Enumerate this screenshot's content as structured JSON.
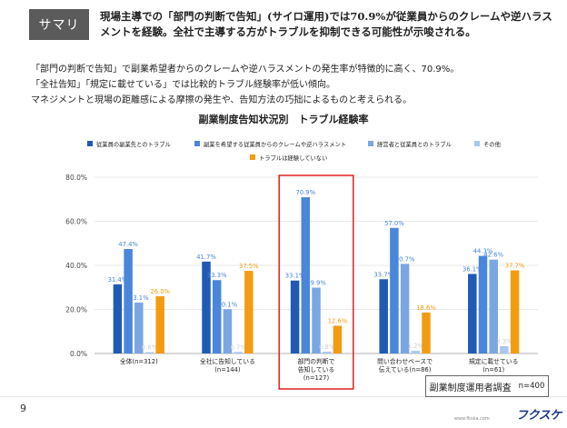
{
  "summary": {
    "tag": "サマリ",
    "text": "現場主導での「部門の判断で告知」(サイロ運用)では70.9%が従業員からのクレームや逆ハラスメントを経験。全社で主導する方がトラブルを抑制できる可能性が示唆される。"
  },
  "description": [
    "「部門の判断で告知」で副業希望者からのクレームや逆ハラスメントの発生率が特徴的に高く、70.9%。",
    "「全社告知」「規定に載せている」では比較的トラブル経験率が低い傾向。",
    "マネジメントと現場の距離感による摩擦の発生や、告知方法の巧拙によるものと考えられる。"
  ],
  "page_number": "9",
  "source": {
    "label": "副業制度運用者調査",
    "n": "n=400"
  },
  "footer": {
    "url": "www.fkska.com",
    "logo": "フクスケ"
  },
  "colors": {
    "s1": "#1f5bb5",
    "s2": "#4a86d9",
    "s3": "#7aa7e3",
    "s4": "#a9c6ee",
    "s5": "#f39c12",
    "highlight": "#e02020",
    "label_blue": "#4a86d9",
    "label_orange": "#f39c12",
    "label_gray": "#c9ccd1"
  },
  "chart_data": {
    "type": "bar",
    "title": "副業制度告知状況別　トラブル経験率",
    "categories": [
      [
        "全体(n=312)"
      ],
      [
        "全社に告知している",
        "(n=144)"
      ],
      [
        "部門の判断で",
        "告知している",
        "(n=127)"
      ],
      [
        "問い合わせベースで",
        "伝えている(n=86)"
      ],
      [
        "規定に載せている",
        "(n=61)"
      ]
    ],
    "series": [
      {
        "name": "従業員の副業先とのトラブル",
        "values": [
          31.4,
          41.7,
          33.1,
          33.7,
          36.1
        ],
        "labels": [
          "31.4%",
          "41.7%",
          "33.1%",
          "33.7%",
          "36.1%"
        ]
      },
      {
        "name": "副業を希望する従業員からのクレームや逆ハラスメント",
        "values": [
          47.4,
          33.3,
          70.9,
          57.0,
          44.3
        ],
        "labels": [
          "47.4%",
          "33.3%",
          "70.9%",
          "57.0%",
          "44.3%"
        ]
      },
      {
        "name": "経営者と従業員とのトラブル",
        "values": [
          23.1,
          20.1,
          29.9,
          40.7,
          42.6
        ],
        "labels": [
          "23.1%",
          "20.1%",
          "29.9%",
          "40.7%",
          "42.6%"
        ]
      },
      {
        "name": "その他",
        "values": [
          0.6,
          0.7,
          0.8,
          1.2,
          3.3
        ],
        "labels": [
          "0.6%",
          "0.7%",
          "0.8%",
          "1.2%",
          "3.3%"
        ]
      },
      {
        "name": "トラブルは経験していない",
        "values": [
          26.0,
          37.5,
          12.6,
          18.6,
          37.7
        ],
        "labels": [
          "26.0%",
          "37.5%",
          "12.6%",
          "18.6%",
          "37.7%"
        ]
      }
    ],
    "y_ticks": [
      "0.0%",
      "20.0%",
      "40.0%",
      "60.0%",
      "80.0%"
    ],
    "ylim": [
      0,
      80
    ],
    "highlight_category": 2,
    "legend_position": "top"
  }
}
